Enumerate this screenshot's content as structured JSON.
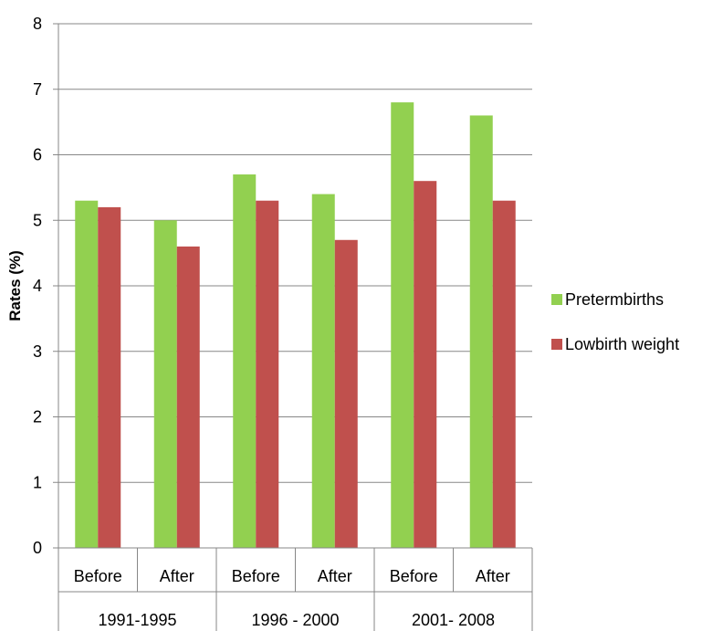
{
  "chart_data": {
    "type": "bar",
    "ylabel": "Rates (%)",
    "xlabel": "",
    "ylim": [
      0,
      8
    ],
    "yticks": [
      0,
      1,
      2,
      3,
      4,
      5,
      6,
      7,
      8
    ],
    "grid": true,
    "legend_position": "right",
    "groups": [
      "1991-1995",
      "1996 - 2000",
      "2001- 2008"
    ],
    "categories": [
      "Before",
      "After",
      "Before",
      "After",
      "Before",
      "After"
    ],
    "series": [
      {
        "name": "Pretermbirths",
        "color": "#92D050",
        "values": [
          5.3,
          5.0,
          5.7,
          5.4,
          6.8,
          6.6
        ]
      },
      {
        "name": "Lowbirth weight",
        "color": "#C0504D",
        "values": [
          5.2,
          4.6,
          5.3,
          4.7,
          5.6,
          5.3
        ]
      }
    ]
  }
}
